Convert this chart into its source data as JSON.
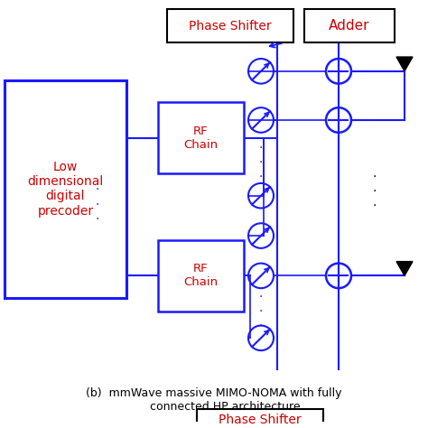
{
  "bg_color": "#ffffff",
  "blue": "#1a1aff",
  "blue_light": "#4444ff",
  "red": "#cc0000",
  "black": "#000000",
  "title": "(b)  mmWave massive MIMO-NOMA with fully\n      connected HP architecture",
  "precoder_label": "Low\ndimensional\ndigital\nprecoder",
  "rf_chain_label": "RF\nChain",
  "phase_shifter_label": "Phase Shifter",
  "adder_label": "Adder"
}
